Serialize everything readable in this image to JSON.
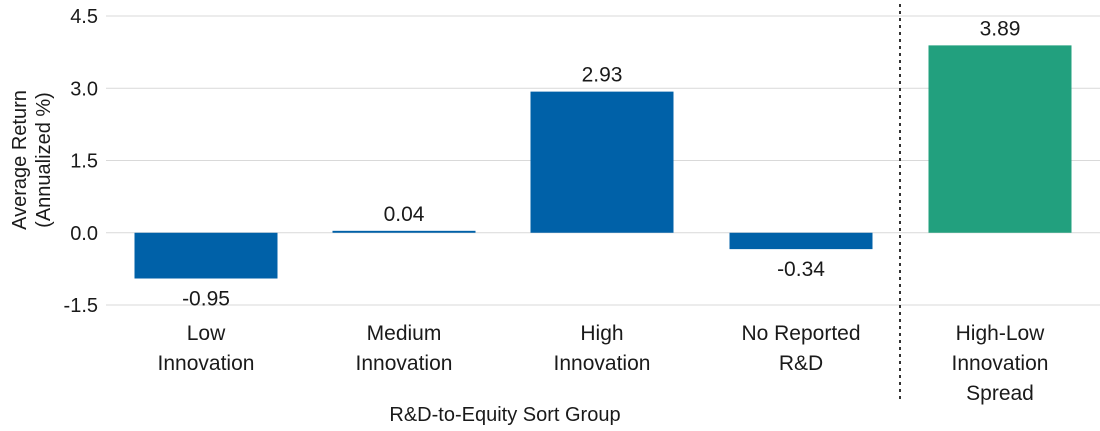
{
  "chart_data": {
    "type": "bar",
    "categories": [
      [
        "Low",
        "Innovation"
      ],
      [
        "Medium",
        "Innovation"
      ],
      [
        "High",
        "Innovation"
      ],
      [
        "No Reported",
        "R&D"
      ],
      [
        "High-Low",
        "Innovation",
        "Spread"
      ]
    ],
    "values": [
      -0.95,
      0.04,
      2.93,
      -0.34,
      3.89
    ],
    "value_labels": [
      "-0.95",
      "0.04",
      "2.93",
      "-0.34",
      "3.89"
    ],
    "colors": [
      "#0061a8",
      "#0061a8",
      "#0061a8",
      "#0061a8",
      "#22a07e"
    ],
    "ylabel": [
      "Average Return",
      "(Annualized %)"
    ],
    "xlabel": "R&D-to-Equity Sort Group",
    "ylim": [
      -1.5,
      4.5
    ],
    "yticks": [
      "4.5",
      "3.0",
      "1.5",
      "0.0",
      "-1.5"
    ],
    "ytick_values": [
      4.5,
      3.0,
      1.5,
      0.0,
      -1.5
    ],
    "grid": "horizontal",
    "separator_before_category": 4
  }
}
